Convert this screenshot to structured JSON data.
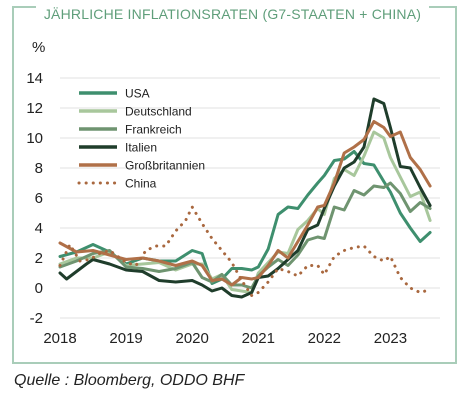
{
  "title": "JÄHRLICHE INFLATIONSRATEN (G7-STAATEN + CHINA)",
  "source": "Quelle : Bloomberg, ODDO BHF",
  "chart_data": {
    "type": "line",
    "title": "JÄHRLICHE INFLATIONSRATEN (G7-STAATEN + CHINA)",
    "ylabel": "%",
    "xlabel": "",
    "ylim": [
      -2,
      14
    ],
    "xlim": [
      2018.0,
      2023.75
    ],
    "yticks": [
      -2,
      0,
      2,
      4,
      6,
      8,
      10,
      12,
      14
    ],
    "xticks": [
      2018,
      2019,
      2020,
      2021,
      2022,
      2023
    ],
    "grid": "horizontal",
    "legend": "top-left",
    "series": [
      {
        "name": "USA",
        "color": "#3e8f6e",
        "dash": "none",
        "points": [
          [
            2018.0,
            2.1
          ],
          [
            2018.25,
            2.4
          ],
          [
            2018.5,
            2.9
          ],
          [
            2018.75,
            2.4
          ],
          [
            2019.0,
            1.6
          ],
          [
            2019.25,
            2.0
          ],
          [
            2019.5,
            1.8
          ],
          [
            2019.75,
            1.8
          ],
          [
            2020.0,
            2.5
          ],
          [
            2020.15,
            2.3
          ],
          [
            2020.3,
            0.3
          ],
          [
            2020.45,
            0.6
          ],
          [
            2020.6,
            1.3
          ],
          [
            2020.75,
            1.3
          ],
          [
            2020.9,
            1.2
          ],
          [
            2021.0,
            1.4
          ],
          [
            2021.15,
            2.6
          ],
          [
            2021.3,
            4.9
          ],
          [
            2021.45,
            5.4
          ],
          [
            2021.6,
            5.3
          ],
          [
            2021.75,
            6.2
          ],
          [
            2021.9,
            7.0
          ],
          [
            2022.0,
            7.5
          ],
          [
            2022.15,
            8.5
          ],
          [
            2022.3,
            8.6
          ],
          [
            2022.45,
            9.1
          ],
          [
            2022.6,
            8.3
          ],
          [
            2022.75,
            8.2
          ],
          [
            2022.9,
            7.1
          ],
          [
            2023.0,
            6.4
          ],
          [
            2023.15,
            5.0
          ],
          [
            2023.3,
            4.0
          ],
          [
            2023.45,
            3.1
          ],
          [
            2023.6,
            3.7
          ]
        ]
      },
      {
        "name": "Deutschland",
        "color": "#a8c79c",
        "dash": "none",
        "points": [
          [
            2018.0,
            1.6
          ],
          [
            2018.25,
            2.0
          ],
          [
            2018.5,
            2.0
          ],
          [
            2018.75,
            2.4
          ],
          [
            2019.0,
            1.5
          ],
          [
            2019.25,
            1.6
          ],
          [
            2019.5,
            1.7
          ],
          [
            2019.75,
            1.2
          ],
          [
            2020.0,
            1.6
          ],
          [
            2020.15,
            1.6
          ],
          [
            2020.3,
            0.6
          ],
          [
            2020.45,
            0.9
          ],
          [
            2020.6,
            -0.1
          ],
          [
            2020.75,
            -0.2
          ],
          [
            2020.9,
            -0.3
          ],
          [
            2021.0,
            1.0
          ],
          [
            2021.15,
            1.7
          ],
          [
            2021.3,
            2.4
          ],
          [
            2021.45,
            2.3
          ],
          [
            2021.6,
            3.9
          ],
          [
            2021.75,
            4.5
          ],
          [
            2021.9,
            5.3
          ],
          [
            2022.0,
            4.9
          ],
          [
            2022.15,
            7.3
          ],
          [
            2022.3,
            7.9
          ],
          [
            2022.45,
            7.5
          ],
          [
            2022.6,
            8.8
          ],
          [
            2022.75,
            10.4
          ],
          [
            2022.9,
            10.0
          ],
          [
            2023.0,
            8.7
          ],
          [
            2023.15,
            7.4
          ],
          [
            2023.3,
            6.1
          ],
          [
            2023.45,
            6.4
          ],
          [
            2023.6,
            4.5
          ]
        ]
      },
      {
        "name": "Frankreich",
        "color": "#6f9470",
        "dash": "none",
        "points": [
          [
            2018.0,
            1.4
          ],
          [
            2018.25,
            1.8
          ],
          [
            2018.5,
            2.3
          ],
          [
            2018.75,
            2.5
          ],
          [
            2019.0,
            1.4
          ],
          [
            2019.25,
            1.3
          ],
          [
            2019.5,
            1.1
          ],
          [
            2019.75,
            1.3
          ],
          [
            2020.0,
            1.7
          ],
          [
            2020.15,
            0.7
          ],
          [
            2020.3,
            0.4
          ],
          [
            2020.45,
            0.9
          ],
          [
            2020.6,
            0.2
          ],
          [
            2020.75,
            0.2
          ],
          [
            2020.9,
            0.0
          ],
          [
            2021.0,
            0.8
          ],
          [
            2021.15,
            1.4
          ],
          [
            2021.3,
            1.9
          ],
          [
            2021.45,
            1.5
          ],
          [
            2021.6,
            2.2
          ],
          [
            2021.75,
            3.2
          ],
          [
            2021.9,
            3.4
          ],
          [
            2022.0,
            3.3
          ],
          [
            2022.15,
            5.4
          ],
          [
            2022.3,
            5.2
          ],
          [
            2022.45,
            6.5
          ],
          [
            2022.6,
            6.2
          ],
          [
            2022.75,
            6.8
          ],
          [
            2022.9,
            6.7
          ],
          [
            2023.0,
            7.0
          ],
          [
            2023.15,
            6.3
          ],
          [
            2023.3,
            5.1
          ],
          [
            2023.45,
            5.7
          ],
          [
            2023.6,
            5.3
          ]
        ]
      },
      {
        "name": "Italien",
        "color": "#1f3d2b",
        "dash": "none",
        "points": [
          [
            2018.0,
            1.0
          ],
          [
            2018.1,
            0.6
          ],
          [
            2018.25,
            1.1
          ],
          [
            2018.4,
            1.6
          ],
          [
            2018.5,
            1.9
          ],
          [
            2018.75,
            1.6
          ],
          [
            2019.0,
            1.2
          ],
          [
            2019.25,
            1.1
          ],
          [
            2019.5,
            0.5
          ],
          [
            2019.75,
            0.4
          ],
          [
            2020.0,
            0.5
          ],
          [
            2020.15,
            0.2
          ],
          [
            2020.3,
            -0.2
          ],
          [
            2020.45,
            0.0
          ],
          [
            2020.6,
            -0.5
          ],
          [
            2020.75,
            -0.6
          ],
          [
            2020.9,
            -0.3
          ],
          [
            2021.0,
            0.7
          ],
          [
            2021.15,
            0.8
          ],
          [
            2021.3,
            1.3
          ],
          [
            2021.45,
            1.9
          ],
          [
            2021.6,
            2.5
          ],
          [
            2021.75,
            3.9
          ],
          [
            2021.9,
            4.2
          ],
          [
            2022.0,
            5.3
          ],
          [
            2022.15,
            6.8
          ],
          [
            2022.3,
            8.0
          ],
          [
            2022.45,
            8.4
          ],
          [
            2022.6,
            9.4
          ],
          [
            2022.75,
            12.6
          ],
          [
            2022.9,
            12.3
          ],
          [
            2023.0,
            10.7
          ],
          [
            2023.15,
            8.1
          ],
          [
            2023.3,
            8.0
          ],
          [
            2023.45,
            6.7
          ],
          [
            2023.6,
            5.5
          ]
        ]
      },
      {
        "name": "Großbritannien",
        "color": "#b07048",
        "dash": "none",
        "points": [
          [
            2018.0,
            3.0
          ],
          [
            2018.25,
            2.4
          ],
          [
            2018.5,
            2.5
          ],
          [
            2018.75,
            2.2
          ],
          [
            2019.0,
            1.9
          ],
          [
            2019.25,
            2.0
          ],
          [
            2019.5,
            1.8
          ],
          [
            2019.75,
            1.5
          ],
          [
            2020.0,
            1.8
          ],
          [
            2020.15,
            1.5
          ],
          [
            2020.3,
            0.5
          ],
          [
            2020.45,
            0.6
          ],
          [
            2020.6,
            0.2
          ],
          [
            2020.75,
            0.7
          ],
          [
            2020.9,
            0.6
          ],
          [
            2021.0,
            0.7
          ],
          [
            2021.15,
            1.5
          ],
          [
            2021.3,
            2.5
          ],
          [
            2021.45,
            2.0
          ],
          [
            2021.6,
            3.1
          ],
          [
            2021.75,
            4.2
          ],
          [
            2021.9,
            5.4
          ],
          [
            2022.0,
            5.5
          ],
          [
            2022.15,
            7.0
          ],
          [
            2022.3,
            9.0
          ],
          [
            2022.45,
            9.4
          ],
          [
            2022.6,
            9.9
          ],
          [
            2022.75,
            11.1
          ],
          [
            2022.9,
            10.7
          ],
          [
            2023.0,
            10.1
          ],
          [
            2023.15,
            10.4
          ],
          [
            2023.3,
            8.7
          ],
          [
            2023.45,
            7.9
          ],
          [
            2023.6,
            6.8
          ]
        ]
      },
      {
        "name": "China",
        "color": "#a9683f",
        "dash": "dotted",
        "points": [
          [
            2018.0,
            1.5
          ],
          [
            2018.15,
            2.9
          ],
          [
            2018.3,
            1.8
          ],
          [
            2018.45,
            1.9
          ],
          [
            2018.6,
            2.3
          ],
          [
            2018.75,
            2.5
          ],
          [
            2019.0,
            1.7
          ],
          [
            2019.15,
            1.5
          ],
          [
            2019.3,
            2.5
          ],
          [
            2019.45,
            2.8
          ],
          [
            2019.6,
            2.8
          ],
          [
            2019.75,
            3.8
          ],
          [
            2019.9,
            4.5
          ],
          [
            2020.0,
            5.4
          ],
          [
            2020.15,
            4.3
          ],
          [
            2020.3,
            3.3
          ],
          [
            2020.45,
            2.5
          ],
          [
            2020.6,
            1.7
          ],
          [
            2020.75,
            0.5
          ],
          [
            2020.9,
            -0.5
          ],
          [
            2021.0,
            -0.3
          ],
          [
            2021.15,
            0.4
          ],
          [
            2021.3,
            1.3
          ],
          [
            2021.45,
            1.1
          ],
          [
            2021.6,
            0.8
          ],
          [
            2021.75,
            1.5
          ],
          [
            2021.9,
            1.5
          ],
          [
            2022.0,
            0.9
          ],
          [
            2022.15,
            2.1
          ],
          [
            2022.3,
            2.5
          ],
          [
            2022.45,
            2.7
          ],
          [
            2022.6,
            2.8
          ],
          [
            2022.75,
            2.1
          ],
          [
            2022.9,
            1.8
          ],
          [
            2023.0,
            2.1
          ],
          [
            2023.15,
            0.7
          ],
          [
            2023.3,
            0.0
          ],
          [
            2023.45,
            -0.3
          ],
          [
            2023.6,
            -0.1
          ]
        ]
      }
    ]
  }
}
